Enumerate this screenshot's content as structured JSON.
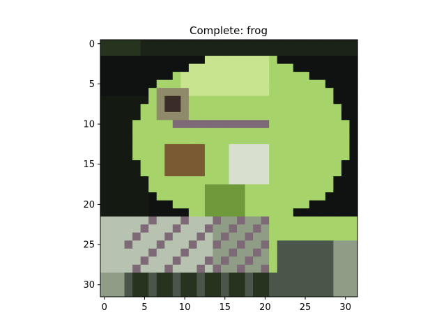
{
  "figure": {
    "title": "Complete: frog",
    "image_description_icon": "frog-pixel-image",
    "grid_size": 32,
    "x_ticks": [
      "0",
      "5",
      "10",
      "15",
      "20",
      "25",
      "30"
    ],
    "y_ticks": [
      "0",
      "5",
      "10",
      "15",
      "20",
      "25",
      "30"
    ],
    "colors": {
      "background_dark": "#0f1210",
      "frog_green": "#a6d46a",
      "frog_light": "#c8e48e",
      "frog_dark_green": "#6f9a3c",
      "eye_dark": "#3a2c26",
      "eye_ring": "#8f8a6a",
      "brown": "#7a5a32",
      "mauve": "#7d6a76",
      "rock_light": "#b7c3b0",
      "rock_mid": "#8f9c86",
      "rock_dark": "#4b564a",
      "leaf_dark": "#26341f"
    }
  }
}
